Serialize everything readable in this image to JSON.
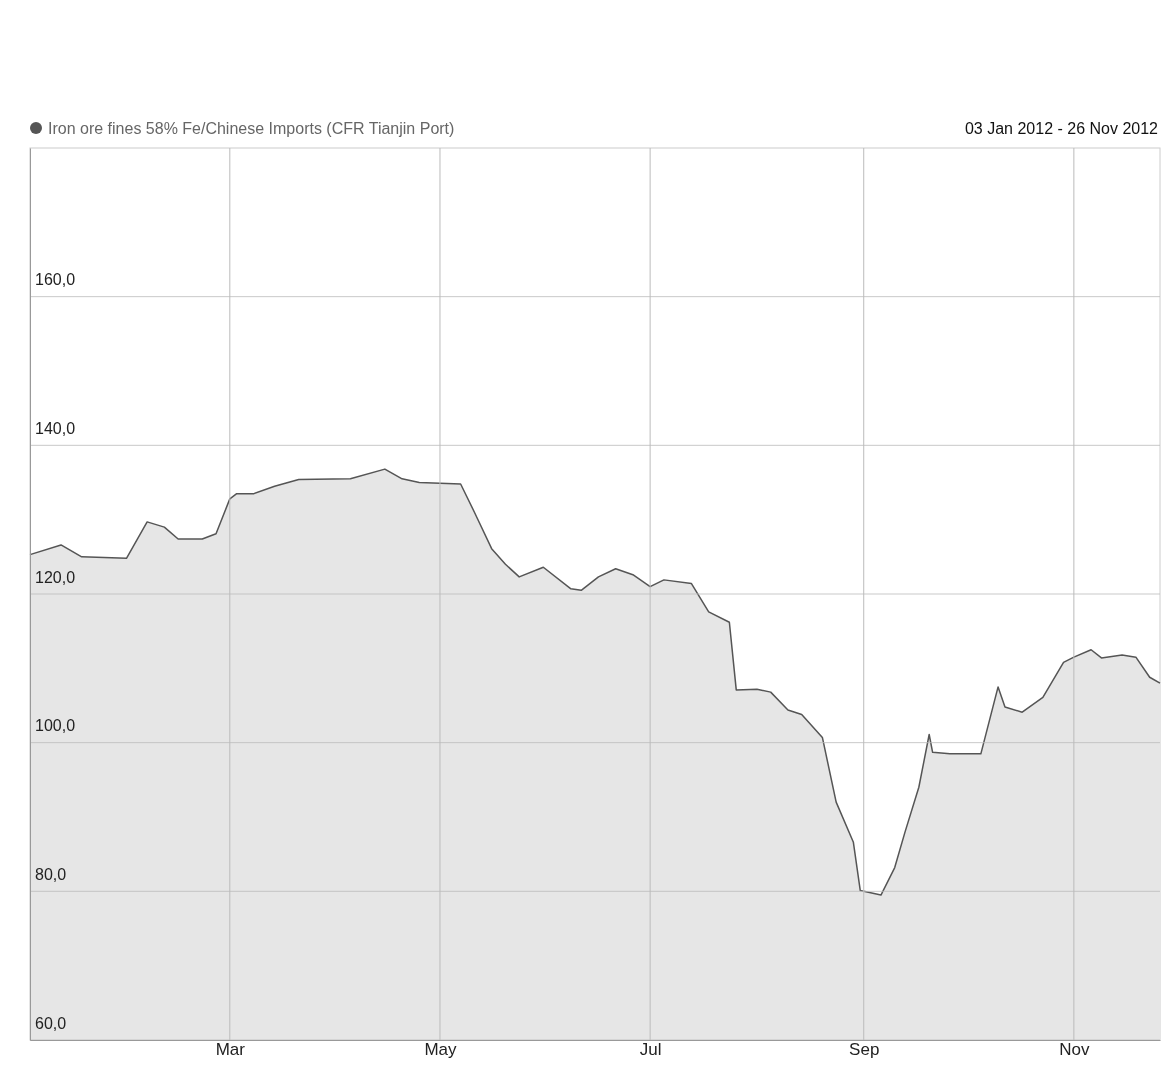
{
  "chart_data": {
    "type": "area",
    "annotations": [
      "03 Jan 2012 - 26 Nov 2012"
    ],
    "x": [
      "2012-01-03",
      "2012-01-12",
      "2012-01-18",
      "2012-01-31",
      "2012-02-06",
      "2012-02-11",
      "2012-02-15",
      "2012-02-22",
      "2012-02-26",
      "2012-03-01",
      "2012-03-03",
      "2012-03-08",
      "2012-03-14",
      "2012-03-21",
      "2012-04-05",
      "2012-04-15",
      "2012-04-20",
      "2012-04-25",
      "2012-05-07",
      "2012-05-11",
      "2012-05-16",
      "2012-05-20",
      "2012-05-24",
      "2012-05-31",
      "2012-06-08",
      "2012-06-11",
      "2012-06-16",
      "2012-06-21",
      "2012-06-26",
      "2012-07-01",
      "2012-07-05",
      "2012-07-13",
      "2012-07-18",
      "2012-07-24",
      "2012-07-26",
      "2012-08-01",
      "2012-08-05",
      "2012-08-10",
      "2012-08-14",
      "2012-08-20",
      "2012-08-24",
      "2012-08-29",
      "2012-08-31",
      "2012-09-06",
      "2012-09-10",
      "2012-09-13",
      "2012-09-17",
      "2012-09-20",
      "2012-09-21",
      "2012-09-26",
      "2012-10-05",
      "2012-10-10",
      "2012-10-12",
      "2012-10-17",
      "2012-10-23",
      "2012-10-29",
      "2012-11-01",
      "2012-11-06",
      "2012-11-09",
      "2012-11-15",
      "2012-11-19",
      "2012-11-23",
      "2012-11-26"
    ],
    "series": [
      {
        "name": "Iron ore fines 58% Fe/Chinese Imports (CFR Tianjin Port)",
        "color": "#555555",
        "values": [
          125.3,
          126.6,
          125.0,
          124.8,
          129.7,
          129.0,
          127.4,
          127.4,
          128.1,
          132.8,
          133.5,
          133.5,
          134.5,
          135.4,
          135.5,
          136.8,
          135.5,
          135.0,
          134.8,
          131.0,
          126.1,
          124.0,
          122.3,
          123.6,
          120.7,
          120.5,
          122.3,
          123.4,
          122.6,
          121.0,
          121.9,
          121.4,
          117.6,
          116.2,
          107.1,
          107.2,
          106.8,
          104.4,
          103.8,
          100.7,
          92.0,
          86.6,
          80.1,
          79.5,
          83.2,
          88.0,
          94.0,
          101.1,
          98.7,
          98.5,
          98.5,
          107.5,
          104.8,
          104.1,
          106.1,
          110.8,
          111.5,
          112.5,
          111.4,
          111.8,
          111.5,
          108.8,
          108.0
        ]
      }
    ],
    "xlim": [
      "2012-01-03",
      "2012-11-26"
    ],
    "xticks": [
      {
        "value": "2012-03-01",
        "label": "Mar"
      },
      {
        "value": "2012-05-01",
        "label": "May"
      },
      {
        "value": "2012-07-01",
        "label": "Jul"
      },
      {
        "value": "2012-09-01",
        "label": "Sep"
      },
      {
        "value": "2012-11-01",
        "label": "Nov"
      }
    ],
    "ylim": [
      60,
      180
    ],
    "yticks": [
      {
        "value": 60,
        "label": "60,0"
      },
      {
        "value": 80,
        "label": "80,0"
      },
      {
        "value": 100,
        "label": "100,0"
      },
      {
        "value": 120,
        "label": "120,0"
      },
      {
        "value": 140,
        "label": "140,0"
      },
      {
        "value": 160,
        "label": "160,0"
      }
    ],
    "grid": true,
    "legend": "top left",
    "marker": "none",
    "line_style": "solid"
  }
}
